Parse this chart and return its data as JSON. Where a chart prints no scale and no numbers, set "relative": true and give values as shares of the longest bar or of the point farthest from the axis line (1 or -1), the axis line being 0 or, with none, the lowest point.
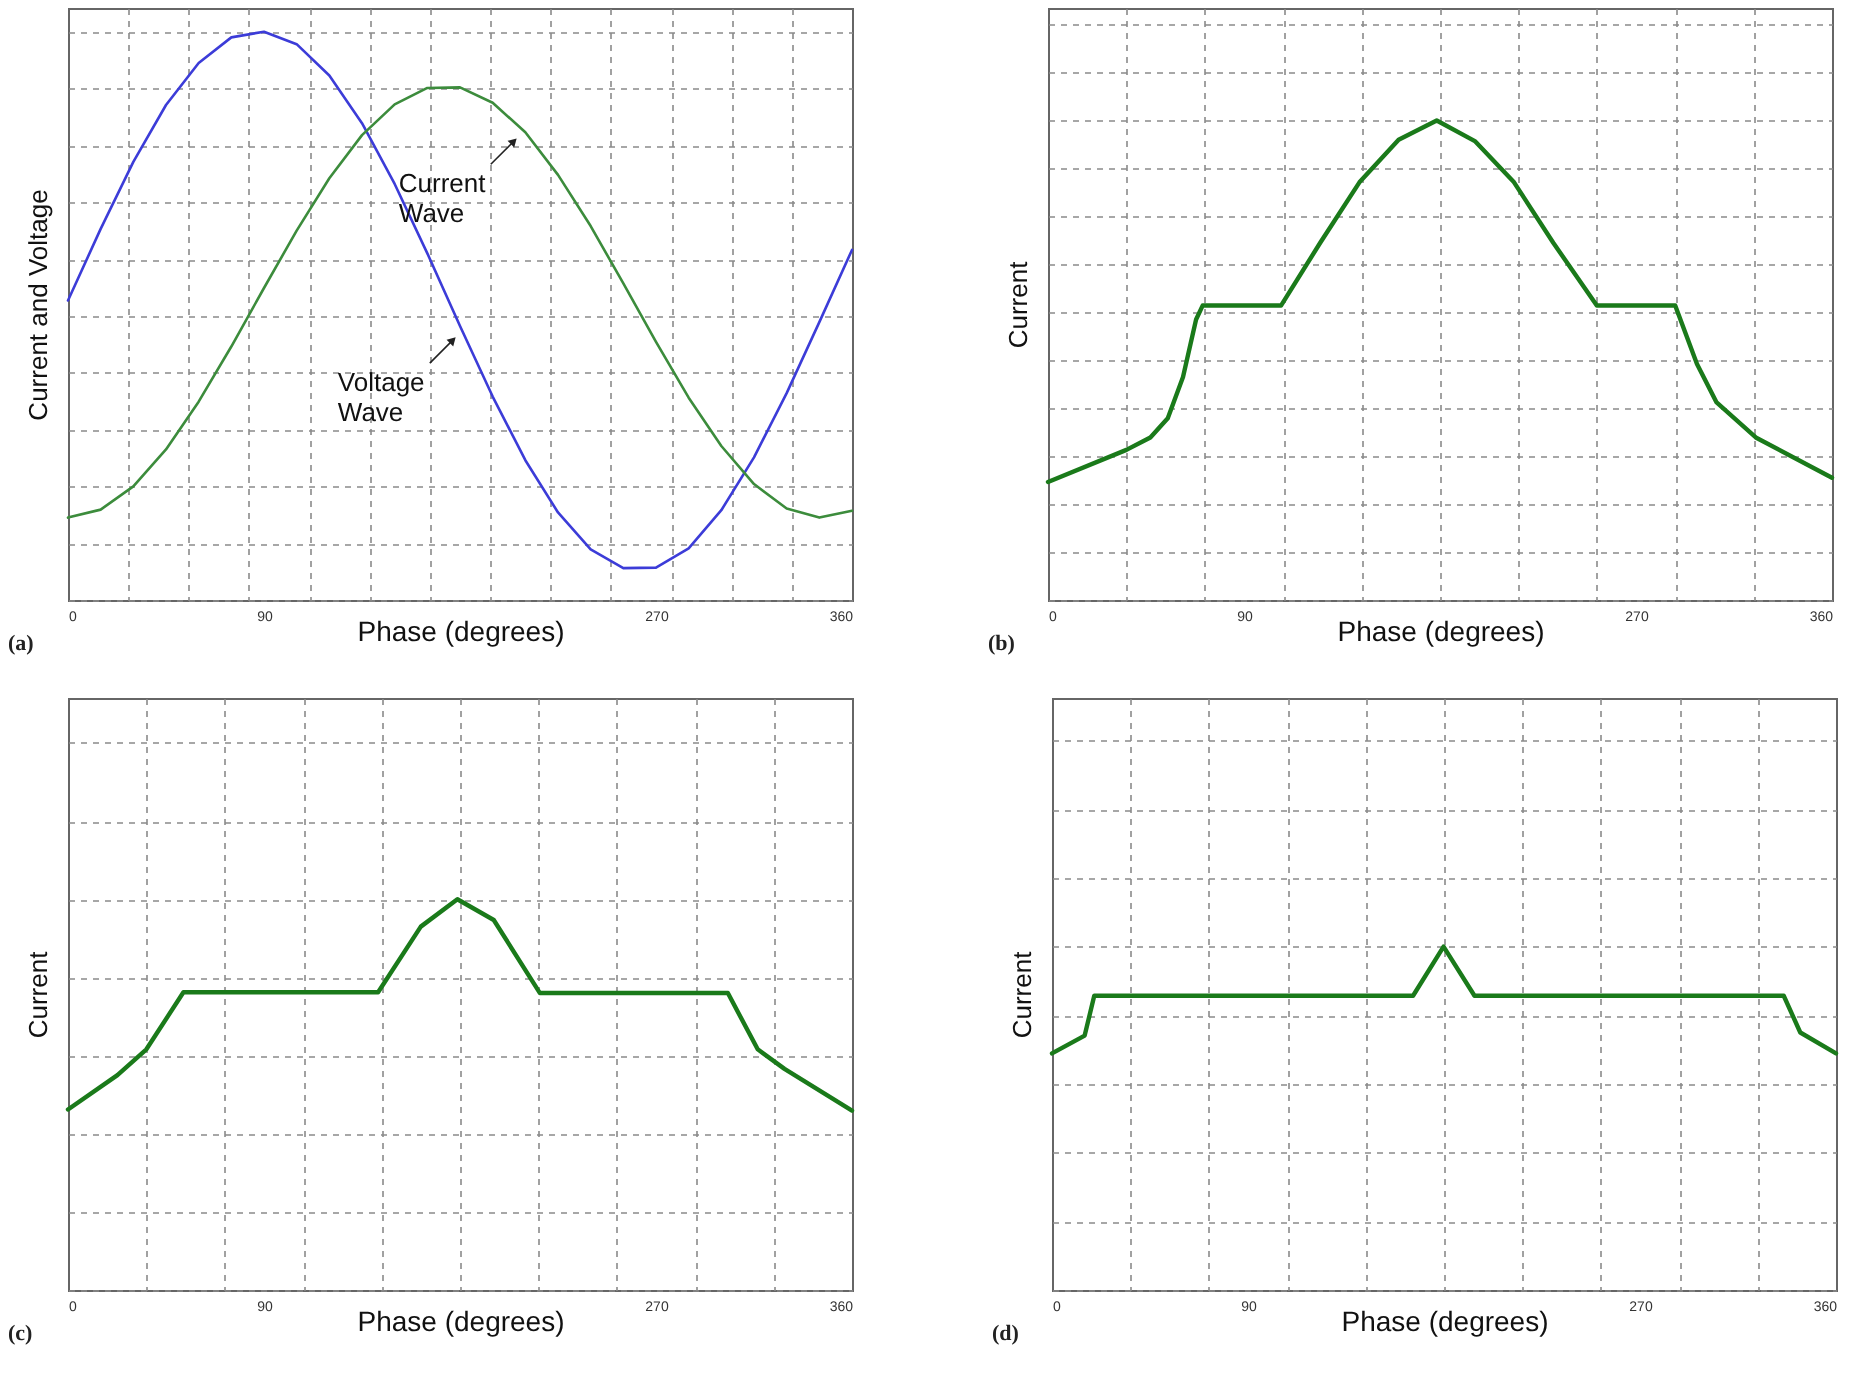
{
  "chart_data": [
    {
      "type": "line",
      "relative": true,
      "xlabel": "Phase (degrees)",
      "ylabel": "Current and Voltage",
      "xlim": [
        0,
        360
      ],
      "xticks": [
        0,
        {
          "value": 27.7,
          "label": null
        },
        {
          "value": 55.4,
          "label": null
        },
        {
          "value": 83.1,
          "label": null
        },
        90,
        {
          "value": 110.8,
          "label": null
        },
        {
          "value": 138.5,
          "label": null
        },
        {
          "value": 166.2,
          "label": null
        },
        {
          "value": 193.8,
          "label": null
        },
        {
          "value": 221.5,
          "label": null
        },
        {
          "value": 249.2,
          "label": null
        },
        270,
        {
          "value": 276.9,
          "label": null
        },
        {
          "value": 304.6,
          "label": null
        },
        {
          "value": 332.3,
          "label": null
        },
        360
      ],
      "grid": true,
      "x": [
        0,
        15,
        30,
        45,
        60,
        75,
        90,
        105,
        120,
        135,
        150,
        165,
        180,
        195,
        210,
        225,
        240,
        255,
        270,
        285,
        300,
        315,
        330,
        345,
        360
      ],
      "series": [
        {
          "color": "#3c3cd8",
          "values": [
            0.527,
            0.653,
            0.771,
            0.871,
            0.945,
            0.99,
            1.0,
            0.978,
            0.923,
            0.839,
            0.732,
            0.61,
            0.482,
            0.358,
            0.246,
            0.154,
            0.089,
            0.056,
            0.057,
            0.091,
            0.158,
            0.251,
            0.364,
            0.489,
            0.616
          ]
        },
        {
          "color": "#3c8c3c",
          "values": [
            0.145,
            0.159,
            0.2,
            0.265,
            0.349,
            0.446,
            0.549,
            0.65,
            0.742,
            0.818,
            0.872,
            0.901,
            0.902,
            0.875,
            0.823,
            0.748,
            0.658,
            0.557,
            0.454,
            0.356,
            0.271,
            0.204,
            0.161,
            0.145,
            0.157
          ]
        }
      ],
      "annotations": [
        {
          "text": "Current Wave",
          "x": 207,
          "y": 0.816
        },
        {
          "text": "Voltage Wave",
          "x": 179,
          "y": 0.466
        },
        "(a)"
      ]
    },
    {
      "type": "line",
      "relative": true,
      "xlabel": "Phase (degrees)",
      "ylabel": "Current",
      "xlim": [
        0,
        360
      ],
      "xticks": [
        0,
        {
          "value": 36,
          "label": null
        },
        {
          "value": 72,
          "label": null
        },
        90,
        {
          "value": 108,
          "label": null
        },
        {
          "value": 144,
          "label": null
        },
        {
          "value": 180,
          "label": null
        },
        {
          "value": 216,
          "label": null
        },
        {
          "value": 252,
          "label": null
        },
        270,
        {
          "value": 288,
          "label": null
        },
        {
          "value": 324,
          "label": null
        },
        360
      ],
      "grid": true,
      "x": [
        0,
        36,
        47,
        55,
        62,
        68,
        71,
        107,
        125,
        143,
        161,
        178.5,
        196,
        214,
        232,
        252,
        288,
        298,
        307,
        325,
        360
      ],
      "series": [
        {
          "color": "#1a7a1a",
          "values": [
            0.246,
            0.313,
            0.339,
            0.379,
            0.465,
            0.585,
            0.614,
            0.614,
            0.745,
            0.871,
            0.96,
            1.0,
            0.957,
            0.871,
            0.745,
            0.614,
            0.614,
            0.492,
            0.412,
            0.339,
            0.255
          ]
        }
      ],
      "annotations": [
        "(b)"
      ]
    },
    {
      "type": "line",
      "relative": true,
      "xlabel": "Phase (degrees)",
      "ylabel": "Current",
      "xlim": [
        0,
        360
      ],
      "xticks": [
        0,
        {
          "value": 36,
          "label": null
        },
        {
          "value": 72,
          "label": null
        },
        90,
        {
          "value": 108,
          "label": null
        },
        {
          "value": 144,
          "label": null
        },
        {
          "value": 180,
          "label": null
        },
        {
          "value": 216,
          "label": null
        },
        {
          "value": 252,
          "label": null
        },
        270,
        {
          "value": 288,
          "label": null
        },
        {
          "value": 324,
          "label": null
        },
        360
      ],
      "grid": true,
      "x": [
        0,
        22.7,
        36,
        53,
        142.4,
        162,
        178.8,
        195.5,
        216.7,
        303,
        316.7,
        329,
        360
      ],
      "series": [
        {
          "color": "#1a7a1a",
          "values": [
            0.462,
            0.55,
            0.616,
            0.762,
            0.762,
            0.93,
            1.0,
            0.947,
            0.76,
            0.76,
            0.616,
            0.566,
            0.459
          ]
        }
      ],
      "annotations": [
        "(c)"
      ]
    },
    {
      "type": "line",
      "relative": true,
      "xlabel": "Phase (degrees)",
      "ylabel": "Current",
      "xlim": [
        0,
        360
      ],
      "xticks": [
        0,
        {
          "value": 36,
          "label": null
        },
        {
          "value": 72,
          "label": null
        },
        90,
        {
          "value": 108,
          "label": null
        },
        {
          "value": 144,
          "label": null
        },
        {
          "value": 180,
          "label": null
        },
        {
          "value": 216,
          "label": null
        },
        {
          "value": 252,
          "label": null
        },
        270,
        {
          "value": 288,
          "label": null
        },
        {
          "value": 324,
          "label": null
        },
        360
      ],
      "grid": true,
      "x": [
        0,
        15,
        19.4,
        165.8,
        179.8,
        194,
        336,
        343.6,
        360
      ],
      "series": [
        {
          "color": "#1a7a1a",
          "values": [
            0.689,
            0.741,
            0.857,
            0.857,
            1.0,
            0.857,
            0.857,
            0.75,
            0.689
          ]
        }
      ],
      "annotations": [
        "(d)"
      ]
    }
  ]
}
